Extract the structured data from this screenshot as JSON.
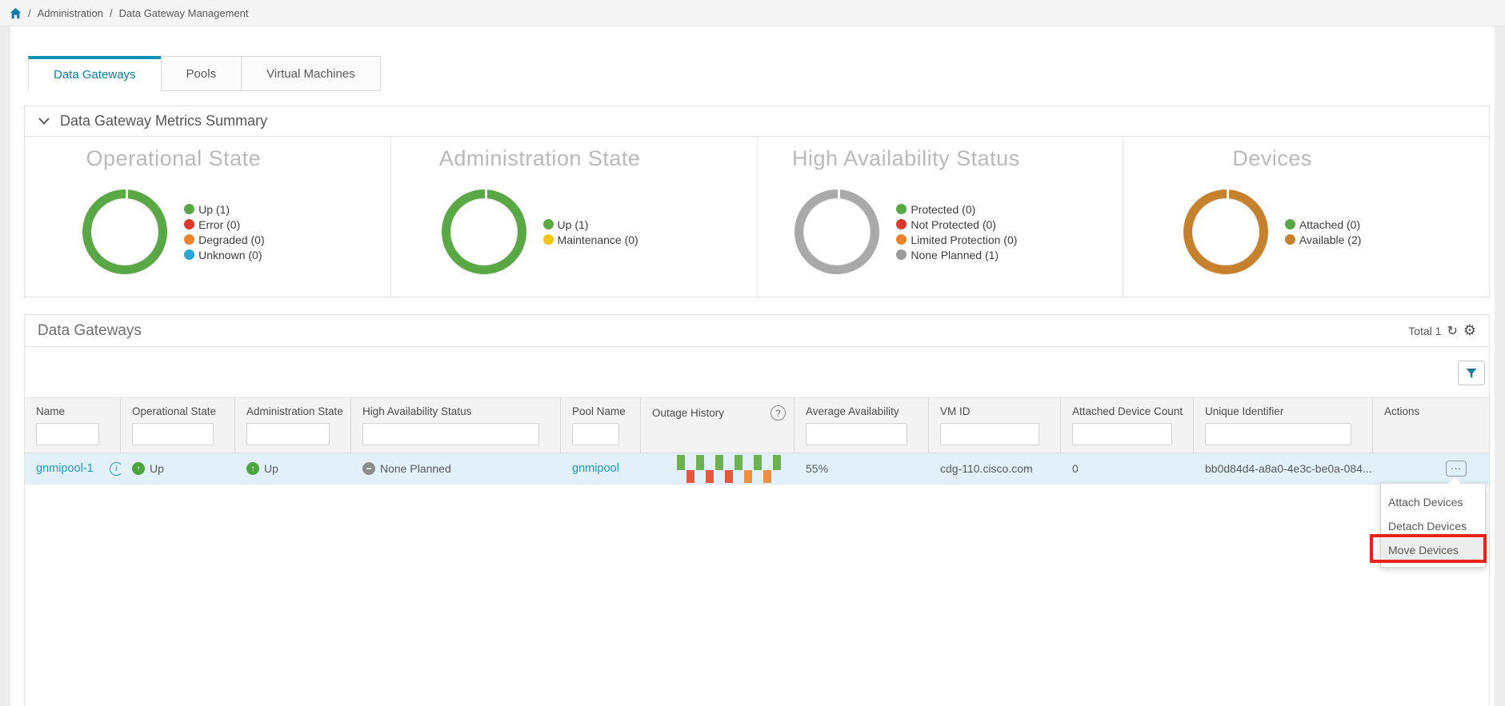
{
  "breadcrumb": {
    "separator": "/",
    "items": [
      "Administration",
      "Data Gateway Management"
    ]
  },
  "tabs": [
    {
      "label": "Data Gateways",
      "active": true
    },
    {
      "label": "Pools",
      "active": false
    },
    {
      "label": "Virtual Machines",
      "active": false
    }
  ],
  "metrics_summary": {
    "title": "Data Gateway Metrics Summary",
    "cards": [
      {
        "title": "Operational State",
        "ring_color": "#5aa746",
        "legend": [
          {
            "label": "Up (1)",
            "color": "#5aa746"
          },
          {
            "label": "Error (0)",
            "color": "#d93a2b"
          },
          {
            "label": "Degraded (0)",
            "color": "#e8822d"
          },
          {
            "label": "Unknown (0)",
            "color": "#2aa5d4"
          }
        ]
      },
      {
        "title": "Administration State",
        "ring_color": "#5aa746",
        "legend": [
          {
            "label": "Up (1)",
            "color": "#5aa746"
          },
          {
            "label": "Maintenance (0)",
            "color": "#f2c40f"
          }
        ]
      },
      {
        "title": "High Availability Status",
        "ring_color": "#a9a9a9",
        "legend": [
          {
            "label": "Protected (0)",
            "color": "#5aa746"
          },
          {
            "label": "Not Protected (0)",
            "color": "#d93a2b"
          },
          {
            "label": "Limited Protection (0)",
            "color": "#e8822d"
          },
          {
            "label": "None Planned (1)",
            "color": "#9b9b9b"
          }
        ]
      },
      {
        "title": "Devices",
        "ring_color": "#c6812f",
        "legend": [
          {
            "label": "Attached (0)",
            "color": "#5aa746"
          },
          {
            "label": "Available (2)",
            "color": "#c6812f"
          }
        ]
      }
    ]
  },
  "data_gateways": {
    "title": "Data Gateways",
    "total_label": "Total 1",
    "columns": [
      {
        "label": "Name",
        "filter": true
      },
      {
        "label": "Operational State",
        "filter": true
      },
      {
        "label": "Administration State",
        "filter": true
      },
      {
        "label": "High Availability Status",
        "filter": true
      },
      {
        "label": "Pool Name",
        "filter": true
      },
      {
        "label": "Outage History",
        "filter": false,
        "help": true
      },
      {
        "label": "Average Availability",
        "filter": true
      },
      {
        "label": "VM ID",
        "filter": true
      },
      {
        "label": "Attached Device Count",
        "filter": true
      },
      {
        "label": "Unique Identifier",
        "filter": true
      },
      {
        "label": "Actions",
        "filter": false
      }
    ],
    "filter_placeholder": "",
    "row": {
      "name": "gnmipool-1",
      "operational_state": "Up",
      "administration_state": "Up",
      "high_availability_status": "None Planned",
      "pool_name": "gnmipool",
      "average_availability": "55%",
      "vm_id": "cdg-110.cisco.com",
      "attached_device_count": "0",
      "unique_identifier": "bb0d84d4-a8a0-4e3c-be0a-084...",
      "outage_history_bars": [
        {
          "dir": "up",
          "color": "#6cb152"
        },
        {
          "dir": "down",
          "color": "#e4573f"
        },
        {
          "dir": "up",
          "color": "#6cb152"
        },
        {
          "dir": "down",
          "color": "#e4573f"
        },
        {
          "dir": "up",
          "color": "#6cb152"
        },
        {
          "dir": "down",
          "color": "#e4573f"
        },
        {
          "dir": "up",
          "color": "#6cb152"
        },
        {
          "dir": "down",
          "color": "#ef8e3f"
        },
        {
          "dir": "up",
          "color": "#6cb152"
        },
        {
          "dir": "down",
          "color": "#ef8e3f"
        },
        {
          "dir": "up",
          "color": "#6cb152"
        }
      ]
    }
  },
  "context_menu": {
    "items": [
      {
        "label": "Attach Devices",
        "highlighted": false
      },
      {
        "label": "Detach Devices",
        "highlighted": false
      },
      {
        "label": "Move Devices",
        "highlighted": true
      }
    ]
  },
  "colors": {
    "accent_teal": "#0b7da3",
    "link_teal": "#1b9bc0",
    "annotation_red": "#e5231b",
    "status_up_green": "#4ca43d",
    "status_neutral_gray": "#8c8c8c"
  }
}
